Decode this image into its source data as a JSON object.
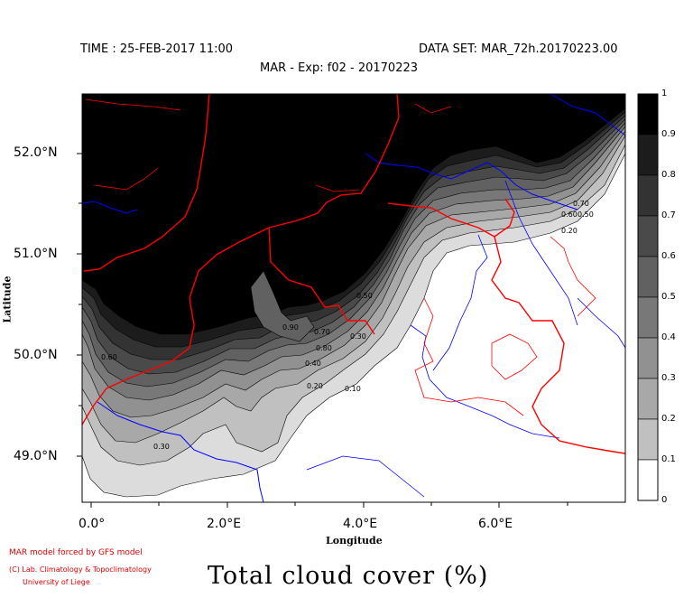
{
  "header": {
    "time": "TIME : 25-FEB-2017 11:00",
    "dataset": "DATA SET: MAR_72h.20170223.00",
    "experiment": "MAR - Exp: f02 - 20170223"
  },
  "axes": {
    "ylabel": "Latitude",
    "xlabel": "Longitude",
    "lat_ticks": [
      "52.0°N",
      "51.0°N",
      "50.0°N",
      "49.0°N"
    ],
    "lon_ticks": [
      "0.0°",
      "2.0°E",
      "4.0°E",
      "6.0°E"
    ]
  },
  "colorbar": {
    "labels": [
      "1",
      "0.9",
      "0.8",
      "0.7",
      "0.6",
      "0.5",
      "0.4",
      "0.3",
      "0.2",
      "0.1",
      "0"
    ],
    "colors": [
      "#000000",
      "#1c1c1c",
      "#333333",
      "#4a4a4a",
      "#616161",
      "#787878",
      "#919191",
      "#a8a8a8",
      "#c0c0c0",
      "#dcdcdc",
      "#ffffff"
    ]
  },
  "contour_labels": [
    "0.90",
    "0.80",
    "0.70",
    "0.60",
    "0.50",
    "0.40",
    "0.30",
    "0.20",
    "0.10",
    "0.70",
    "0.60",
    "0.50",
    "0.20"
  ],
  "footer": {
    "credit1": "MAR model forced by GFS model",
    "credit2": "(C) Lab. Climatology & Topoclimatology",
    "credit3": "University of Liege",
    "title": "Total cloud cover (%)"
  },
  "colors": {
    "borders": "#ff0000",
    "coast": "#0000ff",
    "credit": "#e00000"
  }
}
